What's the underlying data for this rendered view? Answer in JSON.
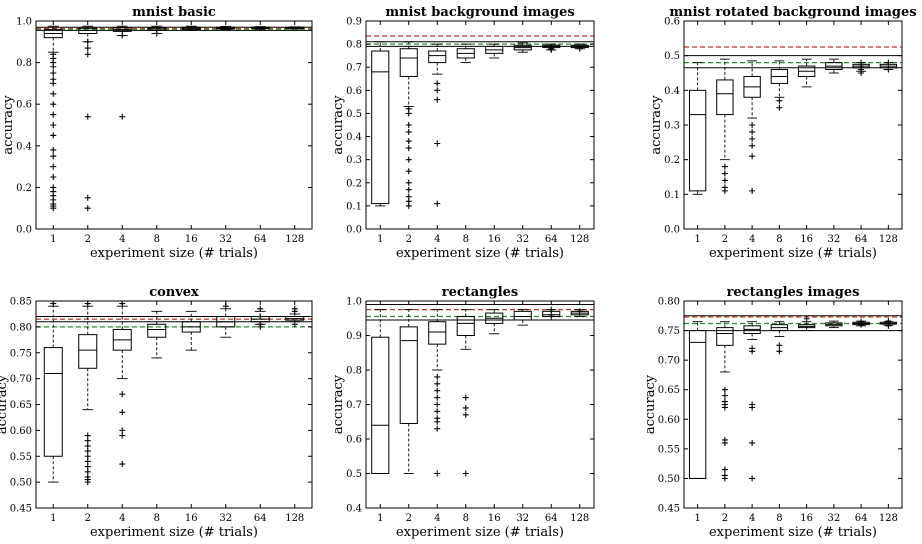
{
  "figure": {
    "background": "#ffffff",
    "box_color": "#000000",
    "ref_line_colors": {
      "black": "#000000",
      "red": "#c0392b",
      "green": "#2e8b2e"
    }
  },
  "chart_data": [
    {
      "type": "box",
      "title": "mnist basic",
      "xlabel": "experiment size (# trials)",
      "ylabel": "accuracy",
      "categories": [
        "1",
        "2",
        "4",
        "8",
        "16",
        "32",
        "64",
        "128"
      ],
      "ylim": [
        0.0,
        1.0
      ],
      "yticks": [
        "0.0",
        "0.2",
        "0.4",
        "0.6",
        "0.8",
        "1.0"
      ],
      "reference_lines": {
        "black": [
          0.955,
          0.97
        ],
        "red": 0.965,
        "green": 0.96
      },
      "boxes": [
        {
          "whislo": 0.85,
          "q1": 0.92,
          "med": 0.94,
          "q3": 0.96,
          "whishi": 0.975,
          "fliers": [
            0.1,
            0.11,
            0.12,
            0.14,
            0.16,
            0.18,
            0.2,
            0.25,
            0.3,
            0.35,
            0.38,
            0.45,
            0.5,
            0.55,
            0.6,
            0.65,
            0.7,
            0.72,
            0.75,
            0.78,
            0.8,
            0.82,
            0.84
          ]
        },
        {
          "whislo": 0.9,
          "q1": 0.94,
          "med": 0.955,
          "q3": 0.965,
          "whishi": 0.975,
          "fliers": [
            0.1,
            0.15,
            0.54,
            0.84,
            0.87,
            0.9
          ]
        },
        {
          "whislo": 0.93,
          "q1": 0.95,
          "med": 0.96,
          "q3": 0.968,
          "whishi": 0.975,
          "fliers": [
            0.54,
            0.93
          ]
        },
        {
          "whislo": 0.94,
          "q1": 0.955,
          "med": 0.962,
          "q3": 0.968,
          "whishi": 0.975,
          "fliers": [
            0.94
          ]
        },
        {
          "whislo": 0.955,
          "q1": 0.96,
          "med": 0.965,
          "q3": 0.97,
          "whishi": 0.975,
          "fliers": []
        },
        {
          "whislo": 0.958,
          "q1": 0.962,
          "med": 0.966,
          "q3": 0.97,
          "whishi": 0.974,
          "fliers": []
        },
        {
          "whislo": 0.96,
          "q1": 0.964,
          "med": 0.967,
          "q3": 0.97,
          "whishi": 0.973,
          "fliers": []
        },
        {
          "whislo": 0.962,
          "q1": 0.965,
          "med": 0.968,
          "q3": 0.97,
          "whishi": 0.972,
          "fliers": []
        }
      ]
    },
    {
      "type": "box",
      "title": "mnist background images",
      "xlabel": "experiment size (# trials)",
      "ylabel": "accuracy",
      "categories": [
        "1",
        "2",
        "4",
        "8",
        "16",
        "32",
        "64",
        "128"
      ],
      "ylim": [
        0.0,
        0.9
      ],
      "yticks": [
        "0.0",
        "0.1",
        "0.2",
        "0.3",
        "0.4",
        "0.5",
        "0.6",
        "0.7",
        "0.8",
        "0.9"
      ],
      "reference_lines": {
        "black": [
          0.79,
          0.81
        ],
        "red": 0.835,
        "green": 0.8
      },
      "boxes": [
        {
          "whislo": 0.1,
          "q1": 0.11,
          "med": 0.68,
          "q3": 0.77,
          "whishi": 0.81,
          "fliers": []
        },
        {
          "whislo": 0.53,
          "q1": 0.66,
          "med": 0.74,
          "q3": 0.78,
          "whishi": 0.81,
          "fliers": [
            0.1,
            0.12,
            0.14,
            0.17,
            0.2,
            0.25,
            0.3,
            0.35,
            0.38,
            0.42,
            0.45,
            0.5,
            0.52
          ]
        },
        {
          "whislo": 0.67,
          "q1": 0.72,
          "med": 0.75,
          "q3": 0.77,
          "whishi": 0.8,
          "fliers": [
            0.11,
            0.37,
            0.56,
            0.6,
            0.63
          ]
        },
        {
          "whislo": 0.72,
          "q1": 0.74,
          "med": 0.76,
          "q3": 0.78,
          "whishi": 0.8,
          "fliers": []
        },
        {
          "whislo": 0.74,
          "q1": 0.76,
          "med": 0.775,
          "q3": 0.79,
          "whishi": 0.8,
          "fliers": []
        },
        {
          "whislo": 0.765,
          "q1": 0.775,
          "med": 0.785,
          "q3": 0.795,
          "whishi": 0.805,
          "fliers": []
        },
        {
          "whislo": 0.775,
          "q1": 0.785,
          "med": 0.79,
          "q3": 0.795,
          "whishi": 0.8,
          "fliers": [
            0.775,
            0.78
          ]
        },
        {
          "whislo": 0.78,
          "q1": 0.785,
          "med": 0.79,
          "q3": 0.795,
          "whishi": 0.8,
          "fliers": [
            0.78
          ]
        }
      ]
    },
    {
      "type": "box",
      "title": "mnist rotated background images",
      "xlabel": "experiment size (# trials)",
      "ylabel": "accuracy",
      "categories": [
        "1",
        "2",
        "4",
        "8",
        "16",
        "32",
        "64",
        "128"
      ],
      "ylim": [
        0.0,
        0.6
      ],
      "yticks": [
        "0.0",
        "0.1",
        "0.2",
        "0.3",
        "0.4",
        "0.5",
        "0.6"
      ],
      "reference_lines": {
        "black": [
          0.465,
          0.5
        ],
        "red": 0.525,
        "green": 0.48
      },
      "boxes": [
        {
          "whislo": 0.1,
          "q1": 0.11,
          "med": 0.33,
          "q3": 0.4,
          "whishi": 0.48,
          "fliers": []
        },
        {
          "whislo": 0.2,
          "q1": 0.33,
          "med": 0.39,
          "q3": 0.43,
          "whishi": 0.49,
          "fliers": [
            0.11,
            0.12,
            0.14,
            0.16,
            0.18
          ]
        },
        {
          "whislo": 0.32,
          "q1": 0.38,
          "med": 0.41,
          "q3": 0.44,
          "whishi": 0.485,
          "fliers": [
            0.11,
            0.21,
            0.24,
            0.26,
            0.28,
            0.3
          ]
        },
        {
          "whislo": 0.38,
          "q1": 0.42,
          "med": 0.44,
          "q3": 0.46,
          "whishi": 0.485,
          "fliers": [
            0.35,
            0.37
          ]
        },
        {
          "whislo": 0.41,
          "q1": 0.44,
          "med": 0.455,
          "q3": 0.47,
          "whishi": 0.49,
          "fliers": []
        },
        {
          "whislo": 0.45,
          "q1": 0.46,
          "med": 0.47,
          "q3": 0.48,
          "whishi": 0.49,
          "fliers": []
        },
        {
          "whislo": 0.455,
          "q1": 0.465,
          "med": 0.47,
          "q3": 0.475,
          "whishi": 0.48,
          "fliers": [
            0.45,
            0.46,
            0.47,
            0.48
          ]
        },
        {
          "whislo": 0.46,
          "q1": 0.465,
          "med": 0.47,
          "q3": 0.475,
          "whishi": 0.48,
          "fliers": [
            0.46,
            0.48
          ]
        }
      ]
    },
    {
      "type": "box",
      "title": "convex",
      "xlabel": "experiment size (# trials)",
      "ylabel": "accuracy",
      "categories": [
        "1",
        "2",
        "4",
        "8",
        "16",
        "32",
        "64",
        "128"
      ],
      "ylim": [
        0.45,
        0.85
      ],
      "yticks": [
        "0.45",
        "0.50",
        "0.55",
        "0.60",
        "0.65",
        "0.70",
        "0.75",
        "0.80",
        "0.85"
      ],
      "reference_lines": {
        "black": [
          0.81,
          0.82
        ],
        "red": 0.815,
        "green": 0.8
      },
      "boxes": [
        {
          "whislo": 0.5,
          "q1": 0.55,
          "med": 0.71,
          "q3": 0.76,
          "whishi": 0.84,
          "fliers": [
            0.845
          ]
        },
        {
          "whislo": 0.64,
          "q1": 0.72,
          "med": 0.755,
          "q3": 0.785,
          "whishi": 0.84,
          "fliers": [
            0.5,
            0.505,
            0.51,
            0.52,
            0.53,
            0.54,
            0.55,
            0.56,
            0.57,
            0.58,
            0.59,
            0.845
          ]
        },
        {
          "whislo": 0.7,
          "q1": 0.755,
          "med": 0.775,
          "q3": 0.795,
          "whishi": 0.84,
          "fliers": [
            0.535,
            0.59,
            0.6,
            0.635,
            0.67,
            0.845
          ]
        },
        {
          "whislo": 0.74,
          "q1": 0.78,
          "med": 0.795,
          "q3": 0.805,
          "whishi": 0.83,
          "fliers": []
        },
        {
          "whislo": 0.755,
          "q1": 0.79,
          "med": 0.8,
          "q3": 0.81,
          "whishi": 0.83,
          "fliers": []
        },
        {
          "whislo": 0.78,
          "q1": 0.8,
          "med": 0.81,
          "q3": 0.82,
          "whishi": 0.835,
          "fliers": [
            0.84
          ]
        },
        {
          "whislo": 0.805,
          "q1": 0.81,
          "med": 0.815,
          "q3": 0.82,
          "whishi": 0.83,
          "fliers": [
            0.8,
            0.805,
            0.82,
            0.835
          ]
        },
        {
          "whislo": 0.81,
          "q1": 0.813,
          "med": 0.816,
          "q3": 0.82,
          "whishi": 0.825,
          "fliers": [
            0.805,
            0.83,
            0.835
          ]
        }
      ]
    },
    {
      "type": "box",
      "title": "rectangles",
      "xlabel": "experiment size (# trials)",
      "ylabel": "accuracy",
      "categories": [
        "1",
        "2",
        "4",
        "8",
        "16",
        "32",
        "64",
        "128"
      ],
      "ylim": [
        0.4,
        1.0
      ],
      "yticks": [
        "0.4",
        "0.5",
        "0.6",
        "0.7",
        "0.8",
        "0.9",
        "1.0"
      ],
      "reference_lines": {
        "black": [
          0.945,
          0.99
        ],
        "red": 0.975,
        "green": 0.955
      },
      "boxes": [
        {
          "whislo": 0.5,
          "q1": 0.5,
          "med": 0.64,
          "q3": 0.895,
          "whishi": 0.975,
          "fliers": []
        },
        {
          "whislo": 0.5,
          "q1": 0.645,
          "med": 0.885,
          "q3": 0.925,
          "whishi": 0.975,
          "fliers": []
        },
        {
          "whislo": 0.8,
          "q1": 0.875,
          "med": 0.91,
          "q3": 0.94,
          "whishi": 0.975,
          "fliers": [
            0.5,
            0.63,
            0.65,
            0.66,
            0.68,
            0.7,
            0.72,
            0.74,
            0.76,
            0.78
          ]
        },
        {
          "whislo": 0.86,
          "q1": 0.9,
          "med": 0.935,
          "q3": 0.955,
          "whishi": 0.975,
          "fliers": [
            0.5,
            0.67,
            0.69,
            0.72
          ]
        },
        {
          "whislo": 0.905,
          "q1": 0.935,
          "med": 0.95,
          "q3": 0.965,
          "whishi": 0.975,
          "fliers": []
        },
        {
          "whislo": 0.93,
          "q1": 0.945,
          "med": 0.955,
          "q3": 0.97,
          "whishi": 0.975,
          "fliers": []
        },
        {
          "whislo": 0.945,
          "q1": 0.955,
          "med": 0.96,
          "q3": 0.97,
          "whishi": 0.975,
          "fliers": [
            0.96,
            0.975
          ]
        },
        {
          "whislo": 0.955,
          "q1": 0.96,
          "med": 0.965,
          "q3": 0.97,
          "whishi": 0.975,
          "fliers": [
            0.97
          ]
        }
      ]
    },
    {
      "type": "box",
      "title": "rectangles images",
      "xlabel": "experiment size (# trials)",
      "ylabel": "accuracy",
      "categories": [
        "1",
        "2",
        "4",
        "8",
        "16",
        "32",
        "64",
        "128"
      ],
      "ylim": [
        0.45,
        0.8
      ],
      "yticks": [
        "0.45",
        "0.50",
        "0.55",
        "0.60",
        "0.65",
        "0.70",
        "0.75",
        "0.80"
      ],
      "reference_lines": {
        "black": [
          0.75,
          0.775
        ],
        "red": 0.773,
        "green": 0.762
      },
      "boxes": [
        {
          "whislo": 0.5,
          "q1": 0.5,
          "med": 0.73,
          "q3": 0.75,
          "whishi": 0.765,
          "fliers": []
        },
        {
          "whislo": 0.68,
          "q1": 0.725,
          "med": 0.745,
          "q3": 0.755,
          "whishi": 0.765,
          "fliers": [
            0.5,
            0.505,
            0.515,
            0.56,
            0.565,
            0.62,
            0.625,
            0.63,
            0.64,
            0.65
          ]
        },
        {
          "whislo": 0.735,
          "q1": 0.745,
          "med": 0.752,
          "q3": 0.758,
          "whishi": 0.765,
          "fliers": [
            0.5,
            0.56,
            0.62,
            0.625,
            0.715,
            0.72
          ]
        },
        {
          "whislo": 0.74,
          "q1": 0.75,
          "med": 0.755,
          "q3": 0.76,
          "whishi": 0.765,
          "fliers": [
            0.715,
            0.725
          ]
        },
        {
          "whislo": 0.75,
          "q1": 0.755,
          "med": 0.757,
          "q3": 0.76,
          "whishi": 0.765,
          "fliers": [
            0.77
          ]
        },
        {
          "whislo": 0.755,
          "q1": 0.758,
          "med": 0.76,
          "q3": 0.763,
          "whishi": 0.766,
          "fliers": []
        },
        {
          "whislo": 0.758,
          "q1": 0.76,
          "med": 0.762,
          "q3": 0.764,
          "whishi": 0.766,
          "fliers": [
            0.76,
            0.765
          ]
        },
        {
          "whislo": 0.759,
          "q1": 0.761,
          "med": 0.762,
          "q3": 0.764,
          "whishi": 0.765,
          "fliers": [
            0.758,
            0.762,
            0.766
          ]
        }
      ]
    }
  ]
}
